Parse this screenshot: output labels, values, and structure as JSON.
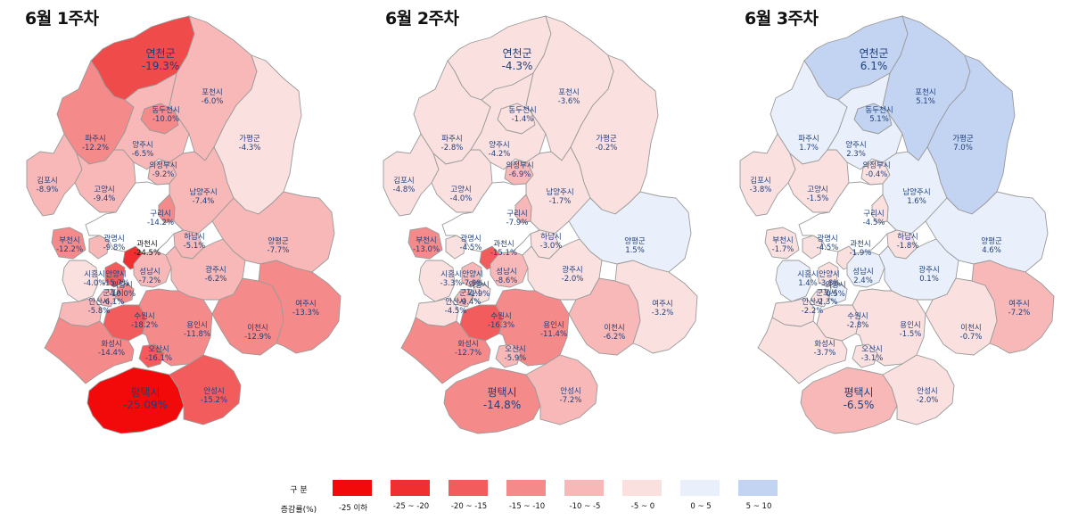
{
  "legend": {
    "header_top": "구  분",
    "header_bottom": "증감률(%)",
    "classes": [
      {
        "label": "-25 이하",
        "color": "#f20a0a"
      },
      {
        "label": "-25 ~ -20",
        "color": "#f03030"
      },
      {
        "label": "-20 ~ -15",
        "color": "#f35c5c"
      },
      {
        "label": "-15 ~ -10",
        "color": "#f58a8a"
      },
      {
        "label": "-10 ~ -5",
        "color": "#f8b8b8"
      },
      {
        "label": "-5 ~ 0",
        "color": "#fbe0e0"
      },
      {
        "label": "0 ~ 5",
        "color": "#eaf0fb"
      },
      {
        "label": "5 ~ 10",
        "color": "#c3d3f2"
      }
    ]
  },
  "seoul_color": "#ffffff",
  "weeks": [
    {
      "title": "6월 1주차",
      "regions": {
        "yeoncheon": {
          "name": "연천군",
          "value": "-19.3%",
          "color": "#ef4b4b"
        },
        "pocheon": {
          "name": "포천시",
          "value": "-6.0%",
          "color": "#f8b8b8"
        },
        "dongducheon": {
          "name": "동두천시",
          "value": "-10.0%",
          "color": "#f58a8a"
        },
        "paju": {
          "name": "파주시",
          "value": "-12.2%",
          "color": "#f58a8a"
        },
        "yangju": {
          "name": "양주시",
          "value": "-6.5%",
          "color": "#f8b8b8"
        },
        "gapyeong": {
          "name": "가평군",
          "value": "-4.3%",
          "color": "#fbe0e0"
        },
        "uijeongbu": {
          "name": "의정부시",
          "value": "-9.2%",
          "color": "#f8b8b8"
        },
        "gimpo": {
          "name": "김포시",
          "value": "-8.9%",
          "color": "#f8b8b8"
        },
        "goyang": {
          "name": "고양시",
          "value": "-9.4%",
          "color": "#f8b8b8"
        },
        "namyangju": {
          "name": "남양주시",
          "value": "-7.4%",
          "color": "#f8b8b8"
        },
        "guri": {
          "name": "구리시",
          "value": "-14.2%",
          "color": "#f58a8a"
        },
        "bucheon": {
          "name": "부천시",
          "value": "-12.2%",
          "color": "#f58a8a"
        },
        "gwangmyeong": {
          "name": "광명시",
          "value": "-9.8%",
          "color": "#f8b8b8"
        },
        "gwacheon": {
          "name": "과천시",
          "value": "-24.5%",
          "color": "#f03030"
        },
        "hanam": {
          "name": "하남시",
          "value": "-5.1%",
          "color": "#f8b8b8"
        },
        "yangpyeong": {
          "name": "양평군",
          "value": "-7.7%",
          "color": "#f8b8b8"
        },
        "siheung": {
          "name": "시흥시",
          "value": "-4.0%",
          "color": "#fbe0e0"
        },
        "anyang": {
          "name": "안양시",
          "value": "-15.7%",
          "color": "#f35c5c"
        },
        "seongnam": {
          "name": "성남시",
          "value": "-7.2%",
          "color": "#f8b8b8"
        },
        "gwangju": {
          "name": "광주시",
          "value": "-6.2%",
          "color": "#f8b8b8"
        },
        "uiwang": {
          "name": "의왕시",
          "value": "-10.0%",
          "color": "#f58a8a"
        },
        "gunpo": {
          "name": "군포시",
          "value": "-6.1%",
          "color": "#f8b8b8"
        },
        "ansan": {
          "name": "안산시",
          "value": "-5.8%",
          "color": "#f8b8b8"
        },
        "suwon": {
          "name": "수원시",
          "value": "-18.2%",
          "color": "#f35c5c"
        },
        "yongin": {
          "name": "용인시",
          "value": "-11.8%",
          "color": "#f58a8a"
        },
        "icheon": {
          "name": "이천시",
          "value": "-12.9%",
          "color": "#f58a8a"
        },
        "yeoju": {
          "name": "여주시",
          "value": "-13.3%",
          "color": "#f58a8a"
        },
        "hwaseong": {
          "name": "화성시",
          "value": "-14.4%",
          "color": "#f58a8a"
        },
        "osan": {
          "name": "오산시",
          "value": "-16.1%",
          "color": "#f35c5c"
        },
        "pyeongtaek": {
          "name": "평택시",
          "value": "-25.09%",
          "color": "#f20a0a"
        },
        "anseong": {
          "name": "안성시",
          "value": "-15.2%",
          "color": "#f35c5c"
        }
      }
    },
    {
      "title": "6월 2주차",
      "regions": {
        "yeoncheon": {
          "name": "연천군",
          "value": "-4.3%",
          "color": "#fbe0e0"
        },
        "pocheon": {
          "name": "포천시",
          "value": "-3.6%",
          "color": "#fbe0e0"
        },
        "dongducheon": {
          "name": "동두천시",
          "value": "-1.4%",
          "color": "#fbe0e0"
        },
        "paju": {
          "name": "파주시",
          "value": "-2.8%",
          "color": "#fbe0e0"
        },
        "yangju": {
          "name": "양주시",
          "value": "-4.2%",
          "color": "#fbe0e0"
        },
        "gapyeong": {
          "name": "가평군",
          "value": "-0.2%",
          "color": "#fbe0e0"
        },
        "uijeongbu": {
          "name": "의정부시",
          "value": "-6.9%",
          "color": "#f8b8b8"
        },
        "gimpo": {
          "name": "김포시",
          "value": "-4.8%",
          "color": "#fbe0e0"
        },
        "goyang": {
          "name": "고양시",
          "value": "-4.0%",
          "color": "#fbe0e0"
        },
        "namyangju": {
          "name": "남양주시",
          "value": "-1.7%",
          "color": "#fbe0e0"
        },
        "guri": {
          "name": "구리시",
          "value": "-7.9%",
          "color": "#f8b8b8"
        },
        "bucheon": {
          "name": "부천시",
          "value": "-13.0%",
          "color": "#f58a8a"
        },
        "gwangmyeong": {
          "name": "광명시",
          "value": "-4.5%",
          "color": "#fbe0e0"
        },
        "gwacheon": {
          "name": "과천시",
          "value": "-15.1%",
          "color": "#f35c5c"
        },
        "hanam": {
          "name": "하남시",
          "value": "-3.0%",
          "color": "#fbe0e0"
        },
        "yangpyeong": {
          "name": "양평군",
          "value": "1.5%",
          "color": "#eaf0fb"
        },
        "siheung": {
          "name": "시흥시",
          "value": "-3.3%",
          "color": "#fbe0e0"
        },
        "anyang": {
          "name": "안양시",
          "value": "-7.9%",
          "color": "#f8b8b8"
        },
        "seongnam": {
          "name": "성남시",
          "value": "-8.6%",
          "color": "#f8b8b8"
        },
        "gwangju": {
          "name": "광주시",
          "value": "-2.0%",
          "color": "#fbe0e0"
        },
        "uiwang": {
          "name": "의왕시",
          "value": "-1.9%",
          "color": "#fbe0e0"
        },
        "gunpo": {
          "name": "군포시",
          "value": "-9.4%",
          "color": "#f8b8b8"
        },
        "ansan": {
          "name": "안산시",
          "value": "-4.5%",
          "color": "#fbe0e0"
        },
        "suwon": {
          "name": "수원시",
          "value": "-16.3%",
          "color": "#f35c5c"
        },
        "yongin": {
          "name": "용인시",
          "value": "-11.4%",
          "color": "#f58a8a"
        },
        "icheon": {
          "name": "이천시",
          "value": "-6.2%",
          "color": "#f8b8b8"
        },
        "yeoju": {
          "name": "여주시",
          "value": "-3.2%",
          "color": "#fbe0e0"
        },
        "hwaseong": {
          "name": "화성시",
          "value": "-12.7%",
          "color": "#f58a8a"
        },
        "osan": {
          "name": "오산시",
          "value": "-5.9%",
          "color": "#f8b8b8"
        },
        "pyeongtaek": {
          "name": "평택시",
          "value": "-14.8%",
          "color": "#f58a8a"
        },
        "anseong": {
          "name": "안성시",
          "value": "-7.2%",
          "color": "#f8b8b8"
        }
      }
    },
    {
      "title": "6월 3주차",
      "regions": {
        "yeoncheon": {
          "name": "연천군",
          "value": "6.1%",
          "color": "#c3d3f2"
        },
        "pocheon": {
          "name": "포천시",
          "value": "5.1%",
          "color": "#c3d3f2"
        },
        "dongducheon": {
          "name": "동두천시",
          "value": "5.1%",
          "color": "#c3d3f2"
        },
        "paju": {
          "name": "파주시",
          "value": "1.7%",
          "color": "#eaf0fb"
        },
        "yangju": {
          "name": "양주시",
          "value": "2.3%",
          "color": "#eaf0fb"
        },
        "gapyeong": {
          "name": "가평군",
          "value": "7.0%",
          "color": "#c3d3f2"
        },
        "uijeongbu": {
          "name": "의정부시",
          "value": "-0.4%",
          "color": "#fbe0e0"
        },
        "gimpo": {
          "name": "김포시",
          "value": "-3.8%",
          "color": "#fbe0e0"
        },
        "goyang": {
          "name": "고양시",
          "value": "-1.5%",
          "color": "#fbe0e0"
        },
        "namyangju": {
          "name": "남양주시",
          "value": "1.6%",
          "color": "#eaf0fb"
        },
        "guri": {
          "name": "구리시",
          "value": "-4.5%",
          "color": "#fbe0e0"
        },
        "bucheon": {
          "name": "부천시",
          "value": "-1.7%",
          "color": "#fbe0e0"
        },
        "gwangmyeong": {
          "name": "광명시",
          "value": "-4.5%",
          "color": "#fbe0e0"
        },
        "gwacheon": {
          "name": "과천시",
          "value": "-1.9%",
          "color": "#fbe0e0"
        },
        "hanam": {
          "name": "하남시",
          "value": "-1.8%",
          "color": "#fbe0e0"
        },
        "yangpyeong": {
          "name": "양평군",
          "value": "4.6%",
          "color": "#eaf0fb"
        },
        "siheung": {
          "name": "시흥시",
          "value": "1.4%",
          "color": "#eaf0fb"
        },
        "anyang": {
          "name": "안양시",
          "value": "-3.8%",
          "color": "#fbe0e0"
        },
        "seongnam": {
          "name": "성남시",
          "value": "2.4%",
          "color": "#eaf0fb"
        },
        "gwangju": {
          "name": "광주시",
          "value": "0.1%",
          "color": "#eaf0fb"
        },
        "uiwang": {
          "name": "의왕시",
          "value": "0.5%",
          "color": "#eaf0fb"
        },
        "gunpo": {
          "name": "군포시",
          "value": "-2.3%",
          "color": "#fbe0e0"
        },
        "ansan": {
          "name": "안산시",
          "value": "-2.2%",
          "color": "#fbe0e0"
        },
        "suwon": {
          "name": "수원시",
          "value": "-2.8%",
          "color": "#fbe0e0"
        },
        "yongin": {
          "name": "용인시",
          "value": "-1.5%",
          "color": "#fbe0e0"
        },
        "icheon": {
          "name": "이천시",
          "value": "-0.7%",
          "color": "#fbe0e0"
        },
        "yeoju": {
          "name": "여주시",
          "value": "-7.2%",
          "color": "#f8b8b8"
        },
        "hwaseong": {
          "name": "화성시",
          "value": "-3.7%",
          "color": "#fbe0e0"
        },
        "osan": {
          "name": "오산시",
          "value": "-3.1%",
          "color": "#fbe0e0"
        },
        "pyeongtaek": {
          "name": "평택시",
          "value": "-6.5%",
          "color": "#f8b8b8"
        },
        "anseong": {
          "name": "안성시",
          "value": "-2.0%",
          "color": "#fbe0e0"
        }
      }
    }
  ]
}
